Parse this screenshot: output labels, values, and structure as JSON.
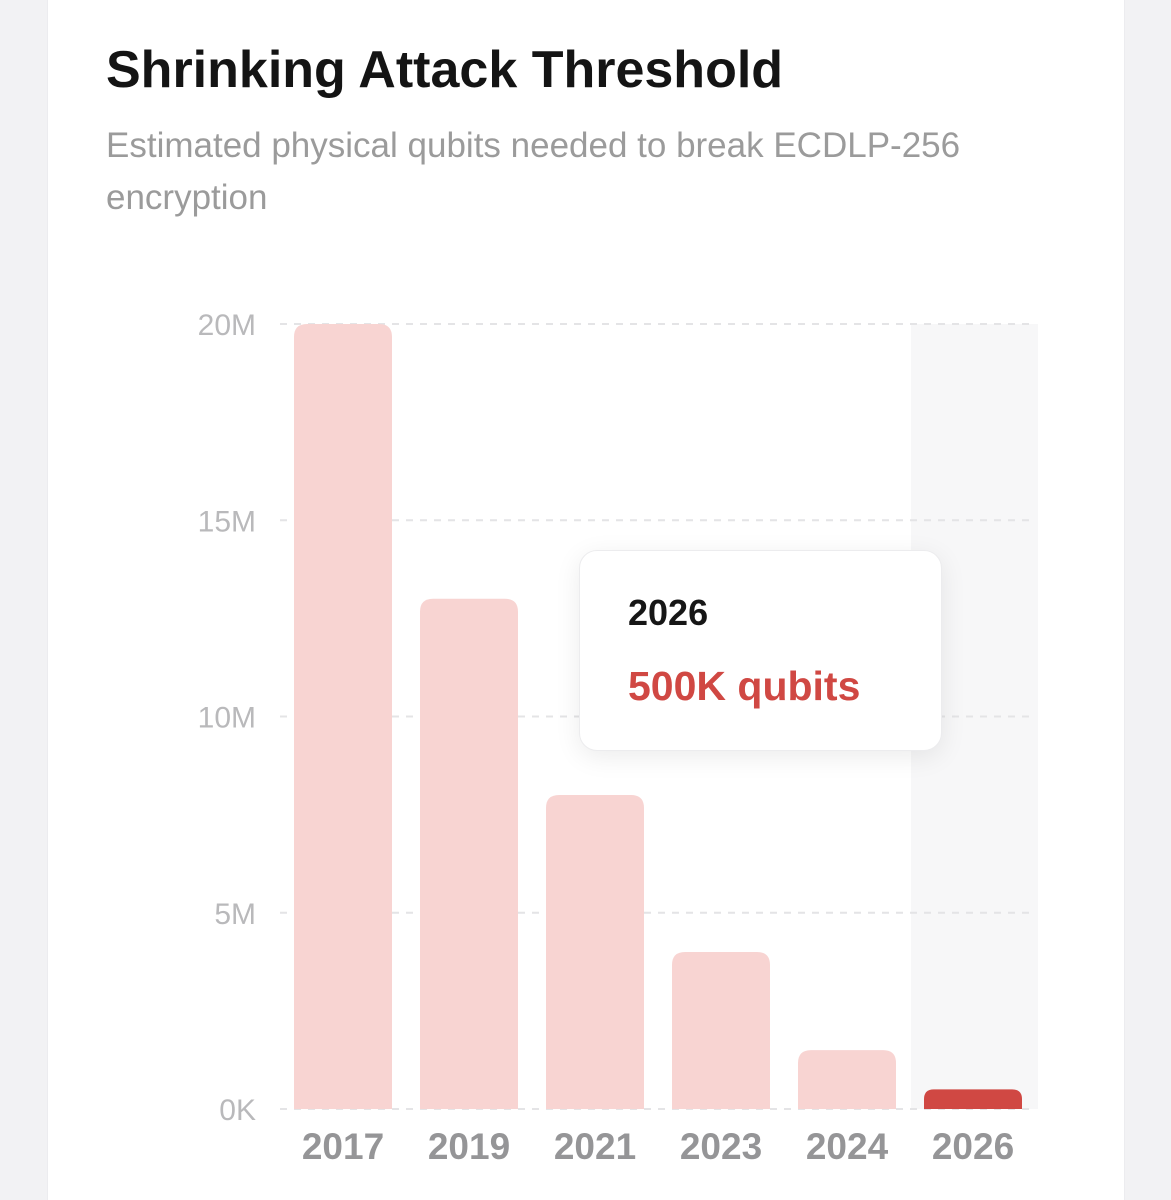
{
  "header": {
    "title": "Shrinking Attack Threshold",
    "subtitle": "Estimated physical qubits needed to break ECDLP-256 encryption"
  },
  "tooltip": {
    "year": "2026",
    "value_label": "500K qubits"
  },
  "chart_data": {
    "type": "bar",
    "categories": [
      "2017",
      "2019",
      "2021",
      "2023",
      "2024",
      "2026"
    ],
    "values": [
      20000000,
      13000000,
      8000000,
      4000000,
      1500000,
      500000
    ],
    "ylim": [
      0,
      20000000
    ],
    "yticks": [
      {
        "value": 0,
        "label": "0K"
      },
      {
        "value": 5000000,
        "label": "5M"
      },
      {
        "value": 10000000,
        "label": "10M"
      },
      {
        "value": 15000000,
        "label": "15M"
      },
      {
        "value": 20000000,
        "label": "20M"
      }
    ],
    "grid": true,
    "highlighted_category": "2026",
    "colors": {
      "bar": "#f8d4d2",
      "highlight": "#d04843",
      "grid": "#e4e4e6",
      "tick_text": "#b9b9bb",
      "category_text": "#959597",
      "hover_band": "#f7f7f8"
    }
  }
}
